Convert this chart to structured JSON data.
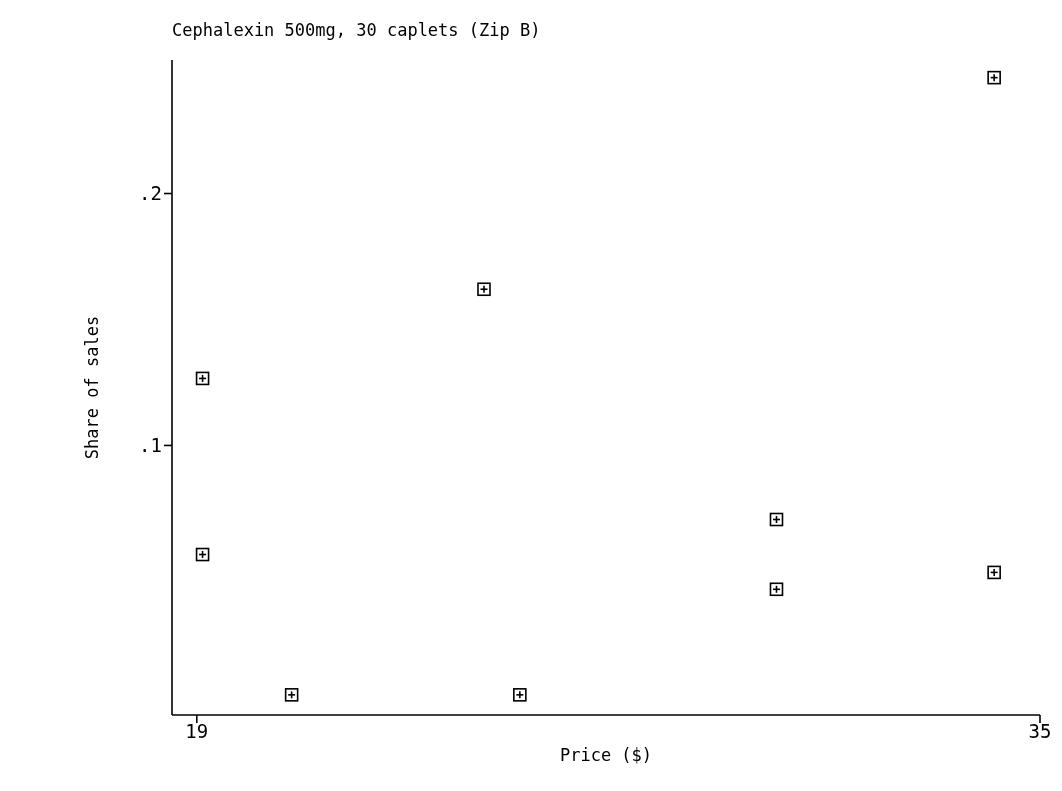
{
  "chart_data": {
    "type": "scatter",
    "title": "Cephalexin 500mg, 30 caplets (Zip B)",
    "xlabel": "Price ($)",
    "ylabel": "Share of sales",
    "x": [
      19.11,
      19.11,
      20.8,
      24.45,
      25.13,
      30.0,
      30.0,
      34.13,
      34.13
    ],
    "series": [
      {
        "color": "#000000",
        "values": [
          0.1266,
          0.0567,
          0.001,
          0.162,
          0.001,
          0.0706,
          0.0429,
          0.246,
          0.0496
        ]
      }
    ],
    "xlim": [
      18.53,
      35
    ],
    "xticks": [
      19,
      35
    ],
    "ylim": [
      -0.007,
      0.253
    ],
    "yticks": [
      {
        "value": 0.1,
        "label": ".1"
      },
      {
        "value": 0.2,
        "label": ".2"
      }
    ],
    "marker": "square"
  }
}
